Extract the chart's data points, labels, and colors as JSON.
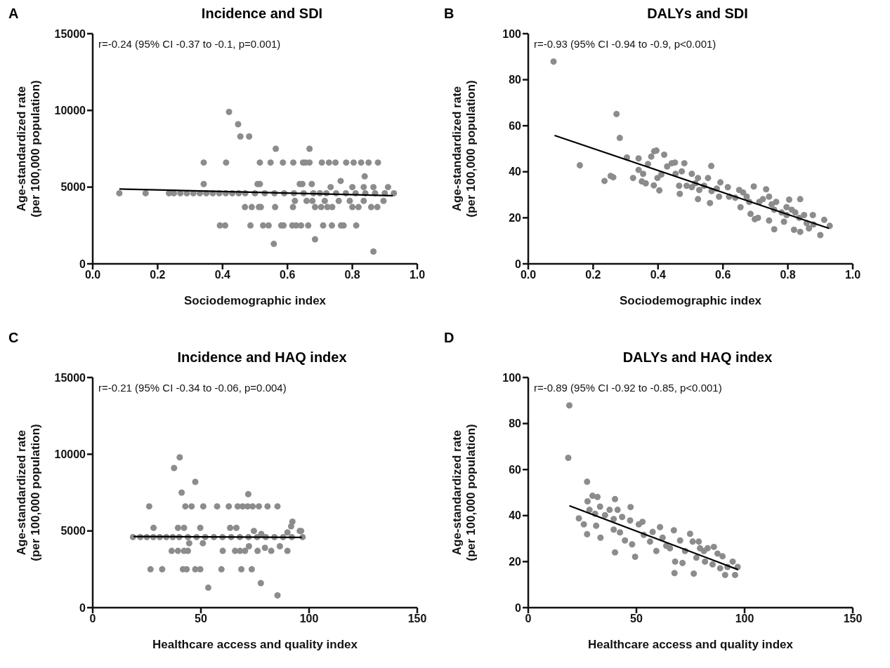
{
  "chart_data": [
    {
      "type": "scatter",
      "title": "Incidence and SDI",
      "xlabel": "Sociodemographic index",
      "ylabel": "Age-standardized rate (per 100,000 population)",
      "annotations": [
        "A",
        "r=-0.24 (95% CI -0.37 to -0.1, p=0.001)"
      ],
      "xlim": [
        0,
        1
      ],
      "xticks": [
        {
          "value": 0,
          "label": "0.0"
        },
        {
          "value": 0.2,
          "label": "0.2"
        },
        {
          "value": 0.4,
          "label": "0.4"
        },
        {
          "value": 0.6,
          "label": "0.6"
        },
        {
          "value": 0.8,
          "label": "0.8"
        },
        {
          "value": 1,
          "label": "1.0"
        }
      ],
      "ylim": [
        0,
        15000
      ],
      "yticks": [
        0,
        5000,
        10000,
        15000
      ],
      "grid": false,
      "series": [
        {
          "marker": "circle",
          "color": "#8c8c8c",
          "x": [
            0.082,
            0.163,
            0.235,
            0.25,
            0.27,
            0.29,
            0.31,
            0.33,
            0.35,
            0.37,
            0.39,
            0.41,
            0.43,
            0.45,
            0.47,
            0.5,
            0.53,
            0.56,
            0.59,
            0.62,
            0.65,
            0.68,
            0.7,
            0.72,
            0.75,
            0.78,
            0.81,
            0.84,
            0.87,
            0.9,
            0.928,
            0.42,
            0.448,
            0.455,
            0.482,
            0.564,
            0.668,
            0.342,
            0.411,
            0.515,
            0.548,
            0.586,
            0.618,
            0.648,
            0.656,
            0.668,
            0.706,
            0.728,
            0.748,
            0.781,
            0.804,
            0.827,
            0.85,
            0.879,
            0.342,
            0.508,
            0.515,
            0.638,
            0.646,
            0.675,
            0.764,
            0.838,
            0.733,
            0.8,
            0.835,
            0.865,
            0.91,
            0.469,
            0.49,
            0.512,
            0.518,
            0.562,
            0.617,
            0.685,
            0.704,
            0.723,
            0.738,
            0.8,
            0.819,
            0.858,
            0.877,
            0.623,
            0.659,
            0.677,
            0.715,
            0.758,
            0.792,
            0.835,
            0.896,
            0.392,
            0.408,
            0.486,
            0.525,
            0.542,
            0.581,
            0.588,
            0.615,
            0.627,
            0.642,
            0.664,
            0.71,
            0.737,
            0.765,
            0.773,
            0.812,
            0.558,
            0.685,
            0.865
          ],
          "values": [
            4600,
            4600,
            4600,
            4600,
            4600,
            4600,
            4600,
            4600,
            4600,
            4600,
            4600,
            4600,
            4600,
            4600,
            4600,
            4600,
            4600,
            4600,
            4600,
            4600,
            4600,
            4600,
            4600,
            4600,
            4600,
            4600,
            4600,
            4600,
            4600,
            4600,
            4600,
            9900,
            9100,
            8300,
            8300,
            7500,
            7500,
            6600,
            6600,
            6600,
            6600,
            6600,
            6600,
            6600,
            6600,
            6600,
            6600,
            6600,
            6600,
            6600,
            6600,
            6600,
            6600,
            6600,
            5200,
            5200,
            5200,
            5200,
            5200,
            5200,
            5400,
            5700,
            5000,
            5000,
            5000,
            5000,
            5000,
            3700,
            3700,
            3700,
            3700,
            3700,
            3700,
            3700,
            3700,
            3700,
            3700,
            3700,
            3700,
            3700,
            3700,
            4100,
            4100,
            4100,
            4100,
            4100,
            4100,
            4100,
            4100,
            2500,
            2500,
            2500,
            2500,
            2500,
            2500,
            2500,
            2500,
            2500,
            2500,
            2500,
            2500,
            2500,
            2500,
            2500,
            2500,
            1300,
            1600,
            800
          ]
        },
        {
          "type": "line",
          "marker": "none",
          "color": "#000000",
          "x": [
            0.082,
            0.925
          ],
          "values": [
            4880,
            4440
          ]
        }
      ]
    },
    {
      "type": "scatter",
      "title": "DALYs and SDI",
      "xlabel": "Sociodemographic index",
      "ylabel": "Age-standardized rate (per 100,000 population)",
      "annotations": [
        "B",
        "r=-0.93 (95% CI -0.94 to -0.9, p<0.001)"
      ],
      "xlim": [
        0,
        1
      ],
      "xticks": [
        {
          "value": 0,
          "label": "0.0"
        },
        {
          "value": 0.2,
          "label": "0.2"
        },
        {
          "value": 0.4,
          "label": "0.4"
        },
        {
          "value": 0.6,
          "label": "0.6"
        },
        {
          "value": 0.8,
          "label": "0.8"
        },
        {
          "value": 1,
          "label": "1.0"
        }
      ],
      "ylim": [
        0,
        100
      ],
      "yticks": [
        0,
        20,
        40,
        60,
        80,
        100
      ],
      "grid": false,
      "series": [
        {
          "marker": "circle",
          "color": "#8c8c8c",
          "x": [
            0.078,
            0.272,
            0.282,
            0.159,
            0.235,
            0.254,
            0.262,
            0.304,
            0.323,
            0.34,
            0.34,
            0.35,
            0.362,
            0.354,
            0.369,
            0.379,
            0.388,
            0.395,
            0.387,
            0.404,
            0.398,
            0.41,
            0.419,
            0.428,
            0.442,
            0.452,
            0.454,
            0.473,
            0.481,
            0.465,
            0.467,
            0.488,
            0.504,
            0.515,
            0.504,
            0.523,
            0.527,
            0.523,
            0.542,
            0.554,
            0.564,
            0.565,
            0.56,
            0.588,
            0.592,
            0.581,
            0.615,
            0.619,
            0.638,
            0.65,
            0.662,
            0.673,
            0.654,
            0.681,
            0.695,
            0.685,
            0.698,
            0.708,
            0.712,
            0.723,
            0.733,
            0.742,
            0.75,
            0.758,
            0.742,
            0.758,
            0.764,
            0.781,
            0.796,
            0.804,
            0.812,
            0.823,
            0.819,
            0.838,
            0.838,
            0.835,
            0.85,
            0.858,
            0.877,
            0.865,
            0.879,
            0.9,
            0.912,
            0.929,
            0.788,
            0.796
          ],
          "values": [
            87.9,
            65.1,
            54.7,
            42.8,
            36,
            38.2,
            37.6,
            46.2,
            37.3,
            45.8,
            40.8,
            35.8,
            35,
            39.1,
            43.4,
            46.6,
            48.9,
            49.2,
            34.1,
            31.9,
            37.3,
            38.8,
            47.4,
            42.3,
            43.7,
            44,
            39.1,
            40.2,
            43.7,
            33.9,
            30.4,
            33.9,
            39.1,
            35,
            33.3,
            37.3,
            32.1,
            28.1,
            33.9,
            37.3,
            42.5,
            31.6,
            26.4,
            29.2,
            35.4,
            32.7,
            33.3,
            29.2,
            28.7,
            32.1,
            31,
            29.2,
            24.6,
            26.9,
            33.6,
            21.7,
            19.4,
            20,
            26.9,
            28.1,
            32.4,
            29.2,
            25.8,
            23.5,
            18.8,
            15,
            26.9,
            22.3,
            24.6,
            27.9,
            23.5,
            22.3,
            14.8,
            13.9,
            28.1,
            20,
            21.2,
            17.7,
            21.2,
            15.4,
            17.1,
            12.5,
            19.1,
            16.5,
            18.3,
            21.2
          ]
        },
        {
          "type": "line",
          "marker": "none",
          "color": "#000000",
          "x": [
            0.081,
            0.927
          ],
          "values": [
            55.8,
            15.4
          ]
        }
      ]
    },
    {
      "type": "scatter",
      "title": "Incidence and HAQ index",
      "xlabel": "Healthcare access and quality index",
      "ylabel": "Age-standardized rate (per 100,000 population)",
      "annotations": [
        "C",
        "r=-0.21 (95% CI -0.34 to -0.06, p=0.004)"
      ],
      "xlim": [
        0,
        150
      ],
      "xticks": [
        0,
        50,
        100,
        150
      ],
      "ylim": [
        0,
        15000
      ],
      "yticks": [
        0,
        5000,
        10000,
        15000
      ],
      "grid": false,
      "series": [
        {
          "marker": "circle",
          "color": "#8c8c8c",
          "x": [
            18.6,
            22,
            25,
            28,
            31,
            34,
            37,
            40,
            44,
            48,
            52,
            56,
            60,
            64,
            68,
            72,
            76,
            80,
            84,
            88,
            92,
            97,
            26.1,
            28.1,
            26.7,
            32.1,
            37.6,
            40.2,
            41.1,
            47.4,
            42.8,
            45.7,
            51.1,
            57.5,
            62.9,
            67,
            69.3,
            71.6,
            73.9,
            76.8,
            80.8,
            85.4,
            71.9,
            39.4,
            42.2,
            49.7,
            63.5,
            66.4,
            74.5,
            77.9,
            92.3,
            91.7,
            90,
            95.7,
            96.3,
            36.5,
            39.4,
            42.2,
            44,
            60.1,
            65.8,
            68.1,
            70.4,
            76.2,
            82.5,
            90,
            44.6,
            50.9,
            72.2,
            79.6,
            86.5,
            41.7,
            43.4,
            47.4,
            49.7,
            59.5,
            68.7,
            73.5,
            53.4,
            77.7,
            85.4
          ],
          "values": [
            4600,
            4600,
            4600,
            4600,
            4600,
            4600,
            4600,
            4600,
            4600,
            4600,
            4600,
            4600,
            4600,
            4600,
            4600,
            4600,
            4600,
            4600,
            4600,
            4600,
            4600,
            4600,
            6600,
            5200,
            2500,
            2500,
            9100,
            9800,
            7500,
            8200,
            6600,
            6600,
            6600,
            6600,
            6600,
            6600,
            6600,
            6600,
            6600,
            6600,
            6600,
            6600,
            7400,
            5200,
            5200,
            5200,
            5200,
            5200,
            5000,
            4800,
            5600,
            5300,
            4900,
            5000,
            5000,
            3700,
            3700,
            3700,
            3700,
            3700,
            3700,
            3700,
            3700,
            3700,
            3700,
            3700,
            4200,
            4200,
            4000,
            3900,
            4000,
            2500,
            2500,
            2500,
            2500,
            2500,
            2500,
            2500,
            1300,
            1600,
            800
          ]
        },
        {
          "type": "line",
          "marker": "none",
          "color": "#000000",
          "x": [
            18.9,
            96.7
          ],
          "values": [
            4640,
            4580
          ]
        }
      ]
    },
    {
      "type": "scatter",
      "title": "DALYs and HAQ index",
      "xlabel": "Healthcare access and quality index",
      "ylabel": "Age-standardized rate (per 100,000 population)",
      "annotations": [
        "D",
        "r=-0.89 (95% CI -0.92 to -0.85, p<0.001)"
      ],
      "xlim": [
        0,
        150
      ],
      "xticks": [
        0,
        50,
        100,
        150
      ],
      "ylim": [
        0,
        100
      ],
      "yticks": [
        0,
        20,
        40,
        60,
        80,
        100
      ],
      "grid": false,
      "series": [
        {
          "marker": "circle",
          "color": "#8c8c8c",
          "x": [
            19,
            18.5,
            27.2,
            23.4,
            25.7,
            27.2,
            27.4,
            29.7,
            32,
            28.3,
            30.9,
            33.2,
            31.4,
            33.4,
            35.5,
            37.6,
            39.5,
            40.1,
            41.3,
            43.4,
            40.1,
            39.5,
            42.4,
            44.7,
            47.3,
            47.1,
            48,
            49.4,
            51.1,
            52.8,
            53.4,
            57.5,
            60.9,
            56.3,
            59.2,
            62.1,
            63.8,
            67.3,
            65.5,
            67.9,
            67.6,
            70.2,
            71.3,
            72.5,
            74.8,
            76.5,
            76,
            77.7,
            78.8,
            79.4,
            81.7,
            81.2,
            82.9,
            85.2,
            85.8,
            87.5,
            88.7,
            89.8,
            91,
            92.1,
            94.5,
            95.6,
            96.8
          ],
          "values": [
            87.9,
            65.1,
            54.7,
            38.8,
            36.2,
            31.9,
            46.2,
            48.6,
            48.1,
            42.5,
            40.8,
            43.9,
            35.6,
            30.4,
            40.2,
            42.5,
            38.5,
            47.2,
            42.5,
            39.4,
            24,
            33.9,
            32.7,
            29.2,
            43.7,
            37.9,
            27.5,
            22.1,
            36.2,
            37.3,
            31.6,
            32.9,
            35,
            28.7,
            24.6,
            30.4,
            26.9,
            33.6,
            25.8,
            20,
            15,
            29.2,
            19.4,
            24.6,
            32.1,
            14.8,
            28.7,
            21.7,
            28.7,
            25.8,
            20,
            24.6,
            25.8,
            18.8,
            26.4,
            23.5,
            17.1,
            22.3,
            14.2,
            17.7,
            20,
            14.2,
            17.7
          ]
        },
        {
          "type": "line",
          "marker": "none",
          "color": "#000000",
          "x": [
            19,
            97
          ],
          "values": [
            44.3,
            16.5
          ]
        }
      ]
    }
  ]
}
